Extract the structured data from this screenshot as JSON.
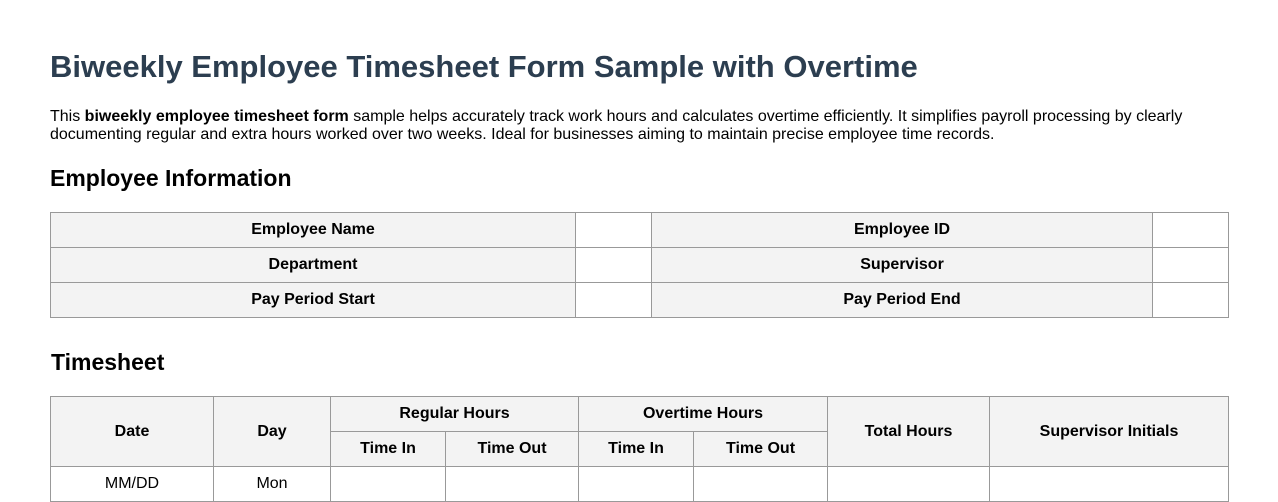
{
  "title": "Biweekly Employee Timesheet Form Sample with Overtime",
  "intro": {
    "pre": "This ",
    "bold": "biweekly employee timesheet form",
    "post": " sample helps accurately track work hours and calculates overtime efficiently. It simplifies payroll processing by clearly documenting regular and extra hours worked over two weeks. Ideal for businesses aiming to maintain precise employee time records."
  },
  "employee_info": {
    "heading": "Employee Information",
    "rows": [
      {
        "label1": "Employee Name",
        "value1": "",
        "label2": "Employee ID",
        "value2": ""
      },
      {
        "label1": "Department",
        "value1": "",
        "label2": "Supervisor",
        "value2": ""
      },
      {
        "label1": "Pay Period Start",
        "value1": "",
        "label2": "Pay Period End",
        "value2": ""
      }
    ]
  },
  "timesheet": {
    "heading": "Timesheet",
    "headers": {
      "date": "Date",
      "day": "Day",
      "regular": "Regular Hours",
      "overtime": "Overtime Hours",
      "total": "Total Hours",
      "initials": "Supervisor Initials",
      "time_in": "Time In",
      "time_out": "Time Out"
    },
    "rows": [
      {
        "date": "MM/DD",
        "day": "Mon",
        "reg_in": "",
        "reg_out": "",
        "ot_in": "",
        "ot_out": "",
        "total": "",
        "initials": ""
      }
    ]
  }
}
